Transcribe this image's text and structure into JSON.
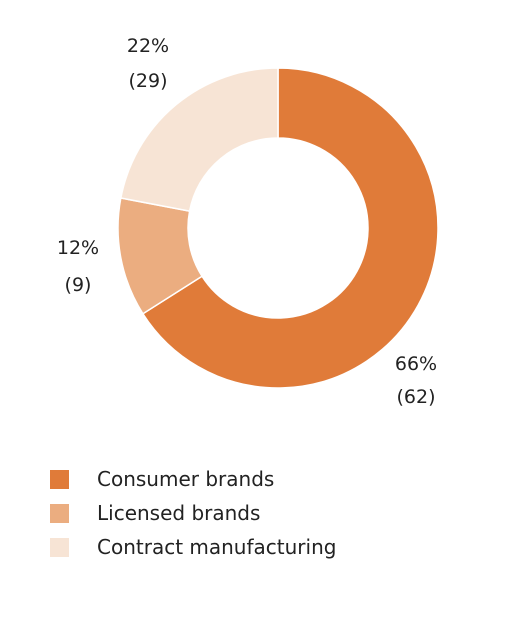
{
  "chart_data": {
    "type": "pie",
    "title": "",
    "donut": true,
    "categories": [
      "Consumer brands",
      "Licensed brands",
      "Contract manufacturing"
    ],
    "values": [
      66,
      12,
      22
    ],
    "counts": [
      62,
      9,
      29
    ],
    "percent_labels": [
      "66%",
      "12%",
      "22%"
    ],
    "count_labels": [
      "(62)",
      "(9)",
      "(29)"
    ],
    "colors": [
      "#E07B39",
      "#EBAD80",
      "#F7E4D5"
    ],
    "legend_position": "bottom-left"
  }
}
